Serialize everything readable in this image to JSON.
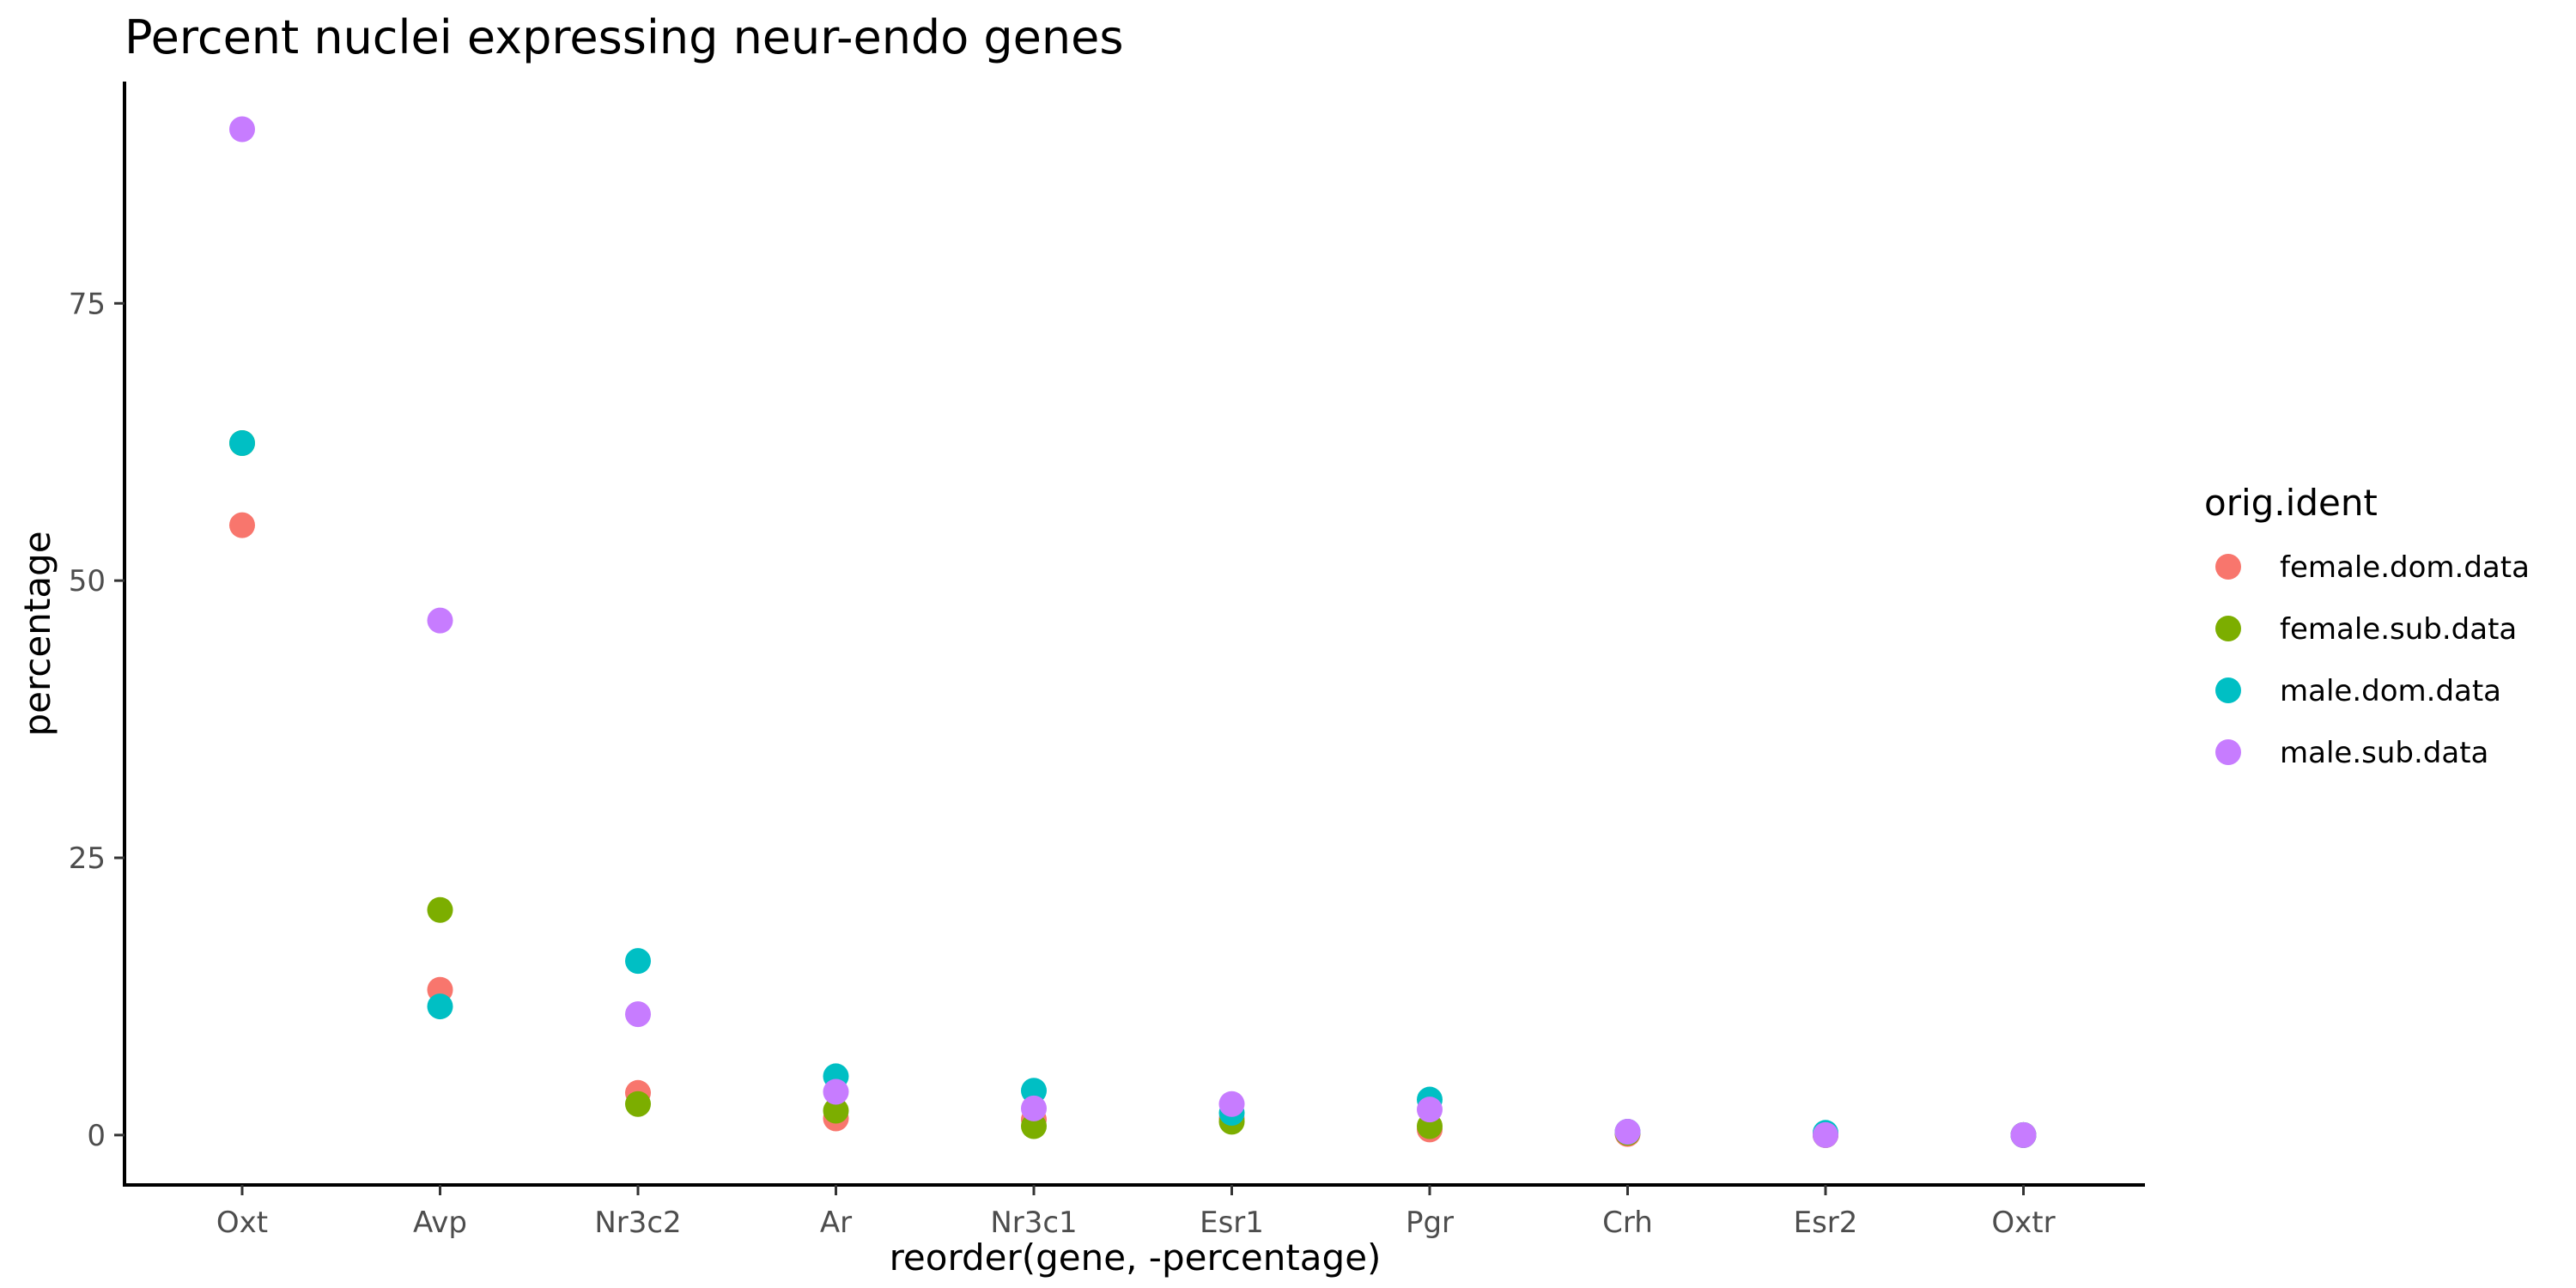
{
  "chart_data": {
    "type": "scatter",
    "title": "Percent nuclei expressing neur-endo genes",
    "xlabel": "reorder(gene, -percentage)",
    "ylabel": "percentage",
    "categories": [
      "Oxt",
      "Avp",
      "Nr3c2",
      "Ar",
      "Nr3c1",
      "Esr1",
      "Pgr",
      "Crh",
      "Esr2",
      "Oxtr"
    ],
    "ylim": [
      -4.5,
      95
    ],
    "yticks": [
      0,
      25,
      50,
      75
    ],
    "grid": false,
    "legend": {
      "title": "orig.ident",
      "position": "right"
    },
    "series": [
      {
        "name": "female.dom.data",
        "color": "#F8766D",
        "values": [
          55.0,
          13.1,
          3.8,
          1.5,
          1.4,
          1.5,
          0.5,
          0.1,
          0.0,
          0.0
        ]
      },
      {
        "name": "female.sub.data",
        "color": "#7CAE00",
        "values": [
          62.4,
          20.3,
          2.8,
          2.2,
          0.8,
          1.2,
          0.8,
          0.2,
          0.0,
          0.0
        ]
      },
      {
        "name": "male.dom.data",
        "color": "#00BFC4",
        "values": [
          62.4,
          11.6,
          15.7,
          5.3,
          4.0,
          2.0,
          3.2,
          0.3,
          0.2,
          0.0
        ]
      },
      {
        "name": "male.sub.data",
        "color": "#C77CFF",
        "values": [
          90.7,
          46.4,
          10.9,
          3.9,
          2.4,
          2.8,
          2.3,
          0.3,
          0.0,
          0.0
        ]
      }
    ]
  }
}
